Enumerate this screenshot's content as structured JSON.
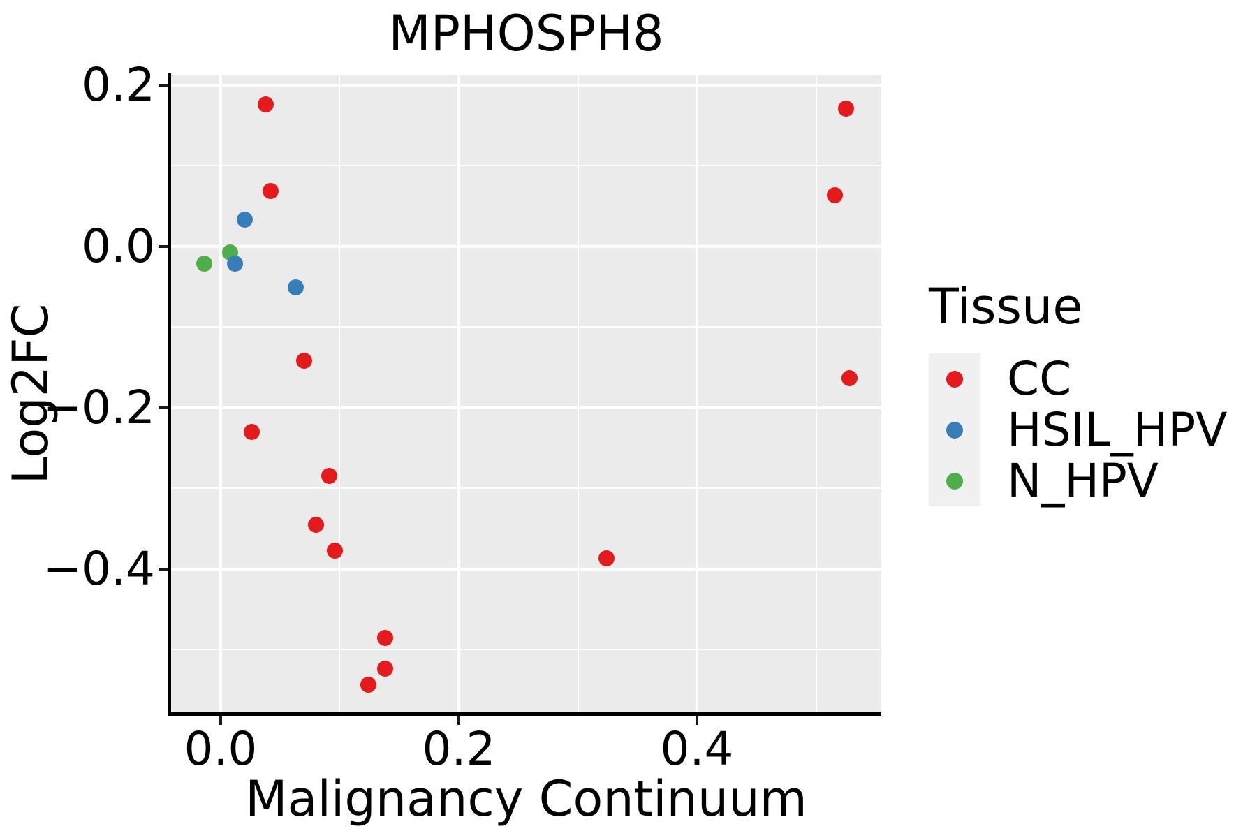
{
  "title": "MPHOSPH8",
  "legend": {
    "title": "Tissue",
    "items": [
      {
        "label": "CC",
        "color": "#e41a1c"
      },
      {
        "label": "HSIL_HPV",
        "color": "#377eb8"
      },
      {
        "label": "N_HPV",
        "color": "#4daf4a"
      }
    ]
  },
  "colors": {
    "cc_red": "#e41a1c",
    "hsil_blue": "#377eb8",
    "n_green": "#4daf4a",
    "panel_background": "#ebebeb",
    "gridline": "#ffffff",
    "legend_key_background": "#f0f0f0",
    "text": "#000000"
  },
  "chart_data": {
    "type": "scatter",
    "title": "MPHOSPH8",
    "xlabel": "Malignancy Continuum",
    "ylabel": "Log2FC",
    "xlim": [
      -0.0416,
      0.5548
    ],
    "ylim": [
      -0.5775,
      0.2121
    ],
    "grid": "major-and-minor, white on gray panel",
    "legend_position": "right",
    "x_major_ticks": [
      0.0,
      0.2,
      0.4
    ],
    "x_tick_labels": [
      "0.0",
      "0.2",
      "0.4"
    ],
    "x_minor_ticks": [
      0.1,
      0.3,
      0.5
    ],
    "y_major_ticks": [
      0.2,
      0.0,
      -0.2,
      -0.4
    ],
    "y_tick_labels": [
      "0.2",
      "0.0",
      "−0.2",
      "−0.4"
    ],
    "y_minor_ticks": [
      0.1,
      -0.1,
      -0.3,
      -0.5
    ],
    "series": [
      {
        "name": "CC",
        "color": "#e41a1c",
        "points": [
          [
            0.038,
            0.176
          ],
          [
            0.042,
            0.069
          ],
          [
            0.026,
            -0.23
          ],
          [
            0.07,
            -0.142
          ],
          [
            0.091,
            -0.284
          ],
          [
            0.08,
            -0.345
          ],
          [
            0.096,
            -0.377
          ],
          [
            0.138,
            -0.485
          ],
          [
            0.138,
            -0.523
          ],
          [
            0.124,
            -0.543
          ],
          [
            0.324,
            -0.387
          ],
          [
            0.525,
            0.171
          ],
          [
            0.516,
            0.064
          ],
          [
            0.528,
            -0.163
          ]
        ]
      },
      {
        "name": "N_HPV",
        "color": "#4daf4a",
        "points": [
          [
            -0.014,
            -0.021
          ],
          [
            0.008,
            -0.007
          ]
        ]
      },
      {
        "name": "HSIL_HPV",
        "color": "#377eb8",
        "points": [
          [
            0.02,
            0.033
          ],
          [
            0.012,
            -0.021
          ],
          [
            0.063,
            -0.051
          ]
        ]
      }
    ]
  }
}
